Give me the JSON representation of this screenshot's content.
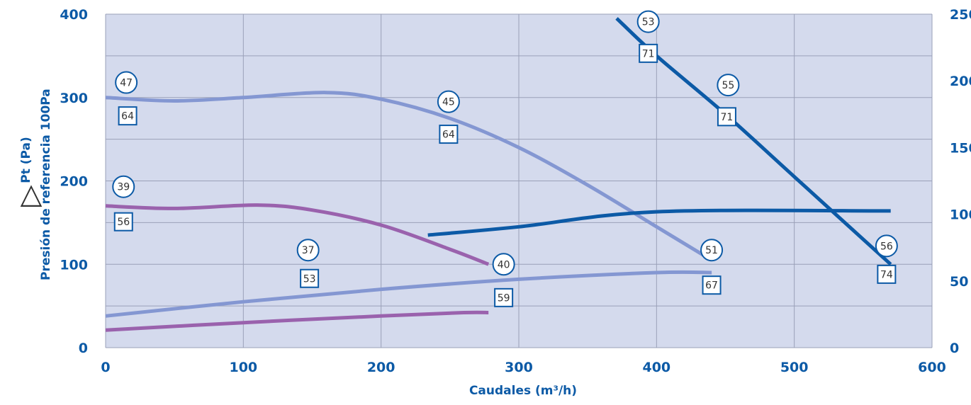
{
  "chart_data": {
    "type": "line",
    "xlabel": "Caudales (m³/h)",
    "ylabel_symbol": "△",
    "ylabel_main": "Pt (Pa)",
    "ylabel_sub": "Presión de referencia 100Pa",
    "xlim": [
      0,
      600
    ],
    "ylim": [
      0,
      400
    ],
    "y2lim": [
      0,
      250
    ],
    "x_ticks": [
      "0",
      "100",
      "200",
      "300",
      "400",
      "500",
      "600"
    ],
    "y_ticks": [
      "0",
      "100",
      "200",
      "300",
      "400"
    ],
    "y2_ticks": [
      "0",
      "50",
      "100",
      "150",
      "200",
      "250"
    ],
    "grid": true,
    "colors": {
      "plot_bg": "#d4daed",
      "grid": "#9aa0b8",
      "axis_text": "#0c5aa6",
      "light_blue": "#8497d2",
      "purple": "#9a62ad",
      "dark_blue": "#0c5aa6",
      "marker_fill": "#ffffff"
    },
    "series": [
      {
        "color": "light_blue",
        "x": [
          0,
          50,
          100,
          160,
          200,
          250,
          300,
          350,
          400,
          440
        ],
        "y": [
          300,
          296,
          300,
          306,
          298,
          275,
          240,
          195,
          145,
          105
        ]
      },
      {
        "color": "purple",
        "x": [
          0,
          50,
          110,
          150,
          200,
          250,
          278
        ],
        "y": [
          170,
          167,
          171,
          165,
          147,
          118,
          100
        ]
      },
      {
        "color": "dark_blue",
        "x": [
          371,
          400,
          450,
          500,
          570
        ],
        "y": [
          395,
          350,
          280,
          205,
          100
        ]
      },
      {
        "color": "light_blue",
        "x": [
          0,
          100,
          200,
          300,
          400,
          440
        ],
        "y": [
          38,
          55,
          70,
          82,
          90,
          90
        ]
      },
      {
        "color": "purple",
        "x": [
          0,
          100,
          200,
          260,
          278
        ],
        "y": [
          21,
          30,
          38,
          42,
          42
        ]
      },
      {
        "color": "dark_blue",
        "x": [
          234,
          300,
          400,
          570
        ],
        "y": [
          135,
          145,
          163,
          164
        ]
      }
    ],
    "annotations": [
      {
        "shape": "circle",
        "text": "47",
        "x": 15,
        "y": 318
      },
      {
        "shape": "square",
        "text": "64",
        "x": 16,
        "y": 278
      },
      {
        "shape": "circle",
        "text": "39",
        "x": 13,
        "y": 193
      },
      {
        "shape": "square",
        "text": "56",
        "x": 13,
        "y": 151
      },
      {
        "shape": "circle",
        "text": "37",
        "x": 147,
        "y": 117
      },
      {
        "shape": "square",
        "text": "53",
        "x": 148,
        "y": 83
      },
      {
        "shape": "circle",
        "text": "45",
        "x": 249,
        "y": 295
      },
      {
        "shape": "square",
        "text": "64",
        "x": 249,
        "y": 256
      },
      {
        "shape": "circle",
        "text": "40",
        "x": 289,
        "y": 100
      },
      {
        "shape": "square",
        "text": "59",
        "x": 289,
        "y": 60
      },
      {
        "shape": "circle",
        "text": "53",
        "x": 394,
        "y": 391
      },
      {
        "shape": "square",
        "text": "71",
        "x": 394,
        "y": 353
      },
      {
        "shape": "circle",
        "text": "55",
        "x": 452,
        "y": 315
      },
      {
        "shape": "square",
        "text": "71",
        "x": 451,
        "y": 277
      },
      {
        "shape": "circle",
        "text": "51",
        "x": 440,
        "y": 117
      },
      {
        "shape": "square",
        "text": "67",
        "x": 440,
        "y": 75
      },
      {
        "shape": "circle",
        "text": "56",
        "x": 567,
        "y": 122
      },
      {
        "shape": "square",
        "text": "74",
        "x": 567,
        "y": 88
      }
    ]
  }
}
